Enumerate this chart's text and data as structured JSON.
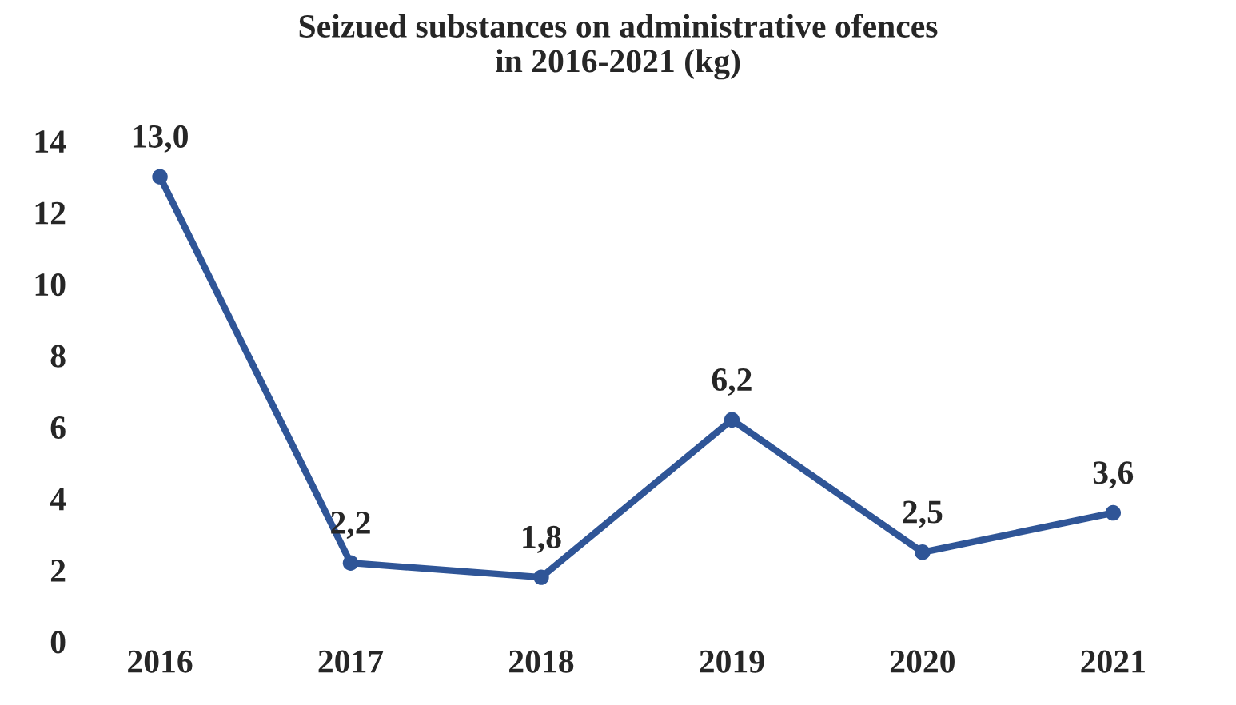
{
  "chart_data": {
    "type": "line",
    "title": "Seizued substances on administrative ofences\nin 2016-2021 (kg)",
    "categories": [
      "2016",
      "2017",
      "2018",
      "2019",
      "2020",
      "2021"
    ],
    "series": [
      {
        "color": "#2f5597",
        "values": [
          13.0,
          2.2,
          1.8,
          6.2,
          2.5,
          3.6
        ],
        "value_labels": [
          "13,0",
          "2,2",
          "1,8",
          "6,2",
          "2,5",
          "3,6"
        ]
      }
    ],
    "ylim": [
      0,
      14
    ],
    "yticks": [
      0,
      2,
      4,
      6,
      8,
      10,
      12,
      14
    ],
    "grid": false,
    "legend": false,
    "marker": "circle",
    "line_style": "solid"
  }
}
